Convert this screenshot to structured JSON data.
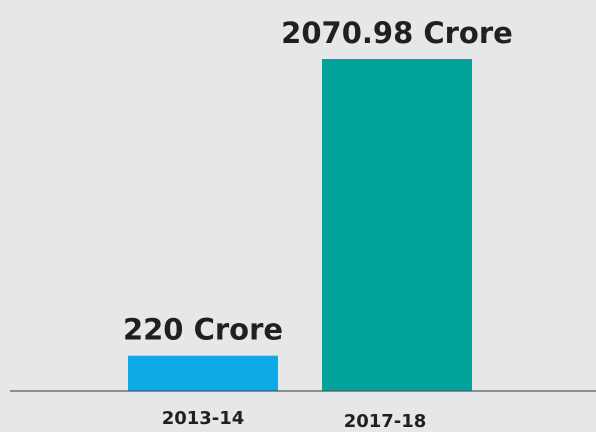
{
  "chart_data": {
    "type": "bar",
    "categories": [
      "2013-14",
      "2017-18"
    ],
    "values": [
      220,
      2070.98
    ],
    "value_labels": [
      "220 Crore",
      "2070.98 Crore"
    ],
    "colors": [
      "#0ea9e6",
      "#00a39a"
    ]
  }
}
